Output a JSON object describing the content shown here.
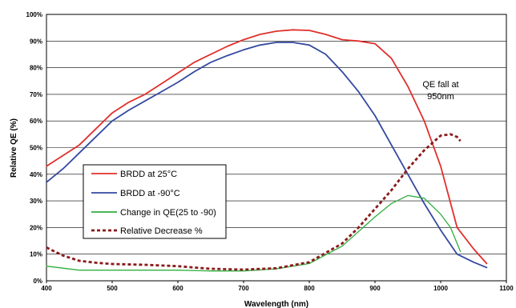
{
  "chart_data": {
    "type": "line",
    "xlabel": "Wavelength (nm)",
    "ylabel": "Relative QE (%)",
    "xlim": [
      400,
      1100
    ],
    "ylim": [
      0,
      100
    ],
    "x_ticks": [
      "400",
      "500",
      "600",
      "700",
      "800",
      "900",
      "1000",
      "1100"
    ],
    "y_ticks": [
      "0%",
      "10%",
      "20%",
      "30%",
      "40%",
      "50%",
      "60%",
      "70%",
      "80%",
      "90%",
      "100%"
    ],
    "grid": "horizontal",
    "legend_position": "left",
    "annotation": [
      "QE fall at",
      "950nm"
    ],
    "series": [
      {
        "name": "BRDD at 25°C",
        "color": "#e0302c",
        "style": "solid",
        "points": [
          [
            400,
            43
          ],
          [
            425,
            47
          ],
          [
            450,
            51
          ],
          [
            475,
            57
          ],
          [
            500,
            63
          ],
          [
            525,
            67
          ],
          [
            550,
            70
          ],
          [
            575,
            74
          ],
          [
            600,
            78
          ],
          [
            625,
            82
          ],
          [
            650,
            85
          ],
          [
            675,
            88
          ],
          [
            700,
            90.5
          ],
          [
            725,
            92.5
          ],
          [
            750,
            93.7
          ],
          [
            775,
            94.2
          ],
          [
            800,
            94
          ],
          [
            825,
            92.5
          ],
          [
            850,
            90.5
          ],
          [
            875,
            90
          ],
          [
            900,
            89
          ],
          [
            925,
            83.5
          ],
          [
            950,
            73
          ],
          [
            975,
            60
          ],
          [
            1000,
            43
          ],
          [
            1025,
            20
          ],
          [
            1050,
            12
          ],
          [
            1070,
            6.5
          ]
        ]
      },
      {
        "name": "BRDD at -90°C",
        "color": "#3449a0",
        "style": "solid",
        "points": [
          [
            400,
            37
          ],
          [
            425,
            42
          ],
          [
            450,
            48
          ],
          [
            475,
            54
          ],
          [
            500,
            60
          ],
          [
            525,
            64
          ],
          [
            550,
            67.5
          ],
          [
            575,
            71
          ],
          [
            600,
            74.5
          ],
          [
            625,
            78.5
          ],
          [
            650,
            82
          ],
          [
            675,
            84.5
          ],
          [
            700,
            86.7
          ],
          [
            725,
            88.5
          ],
          [
            750,
            89.5
          ],
          [
            775,
            89.5
          ],
          [
            800,
            88.5
          ],
          [
            825,
            85
          ],
          [
            850,
            78.5
          ],
          [
            875,
            71
          ],
          [
            900,
            62
          ],
          [
            925,
            51
          ],
          [
            950,
            40
          ],
          [
            975,
            29
          ],
          [
            1000,
            19
          ],
          [
            1025,
            10
          ],
          [
            1050,
            7
          ],
          [
            1070,
            5
          ]
        ]
      },
      {
        "name": "Change in QE(25 to -90)",
        "color": "#2eae3e",
        "style": "solid",
        "points": [
          [
            400,
            5.5
          ],
          [
            450,
            4
          ],
          [
            500,
            4
          ],
          [
            550,
            4
          ],
          [
            600,
            4
          ],
          [
            650,
            3.7
          ],
          [
            700,
            3.7
          ],
          [
            750,
            4.5
          ],
          [
            800,
            6.5
          ],
          [
            850,
            13
          ],
          [
            900,
            24
          ],
          [
            925,
            29
          ],
          [
            950,
            32
          ],
          [
            975,
            31
          ],
          [
            1000,
            25
          ],
          [
            1015,
            20
          ],
          [
            1030,
            11
          ]
        ]
      },
      {
        "name": "Relative Decrease %",
        "color": "#8b1a1a",
        "style": "dashed",
        "points": [
          [
            400,
            12.5
          ],
          [
            425,
            9.5
          ],
          [
            450,
            7.5
          ],
          [
            475,
            6.8
          ],
          [
            500,
            6.3
          ],
          [
            550,
            6
          ],
          [
            600,
            5.5
          ],
          [
            625,
            5
          ],
          [
            650,
            4.5
          ],
          [
            700,
            4.2
          ],
          [
            750,
            4.7
          ],
          [
            800,
            7
          ],
          [
            850,
            14
          ],
          [
            875,
            20
          ],
          [
            900,
            27
          ],
          [
            925,
            34
          ],
          [
            950,
            42
          ],
          [
            975,
            49
          ],
          [
            1000,
            54.5
          ],
          [
            1015,
            55
          ],
          [
            1025,
            54
          ],
          [
            1030,
            52.5
          ]
        ]
      }
    ]
  }
}
